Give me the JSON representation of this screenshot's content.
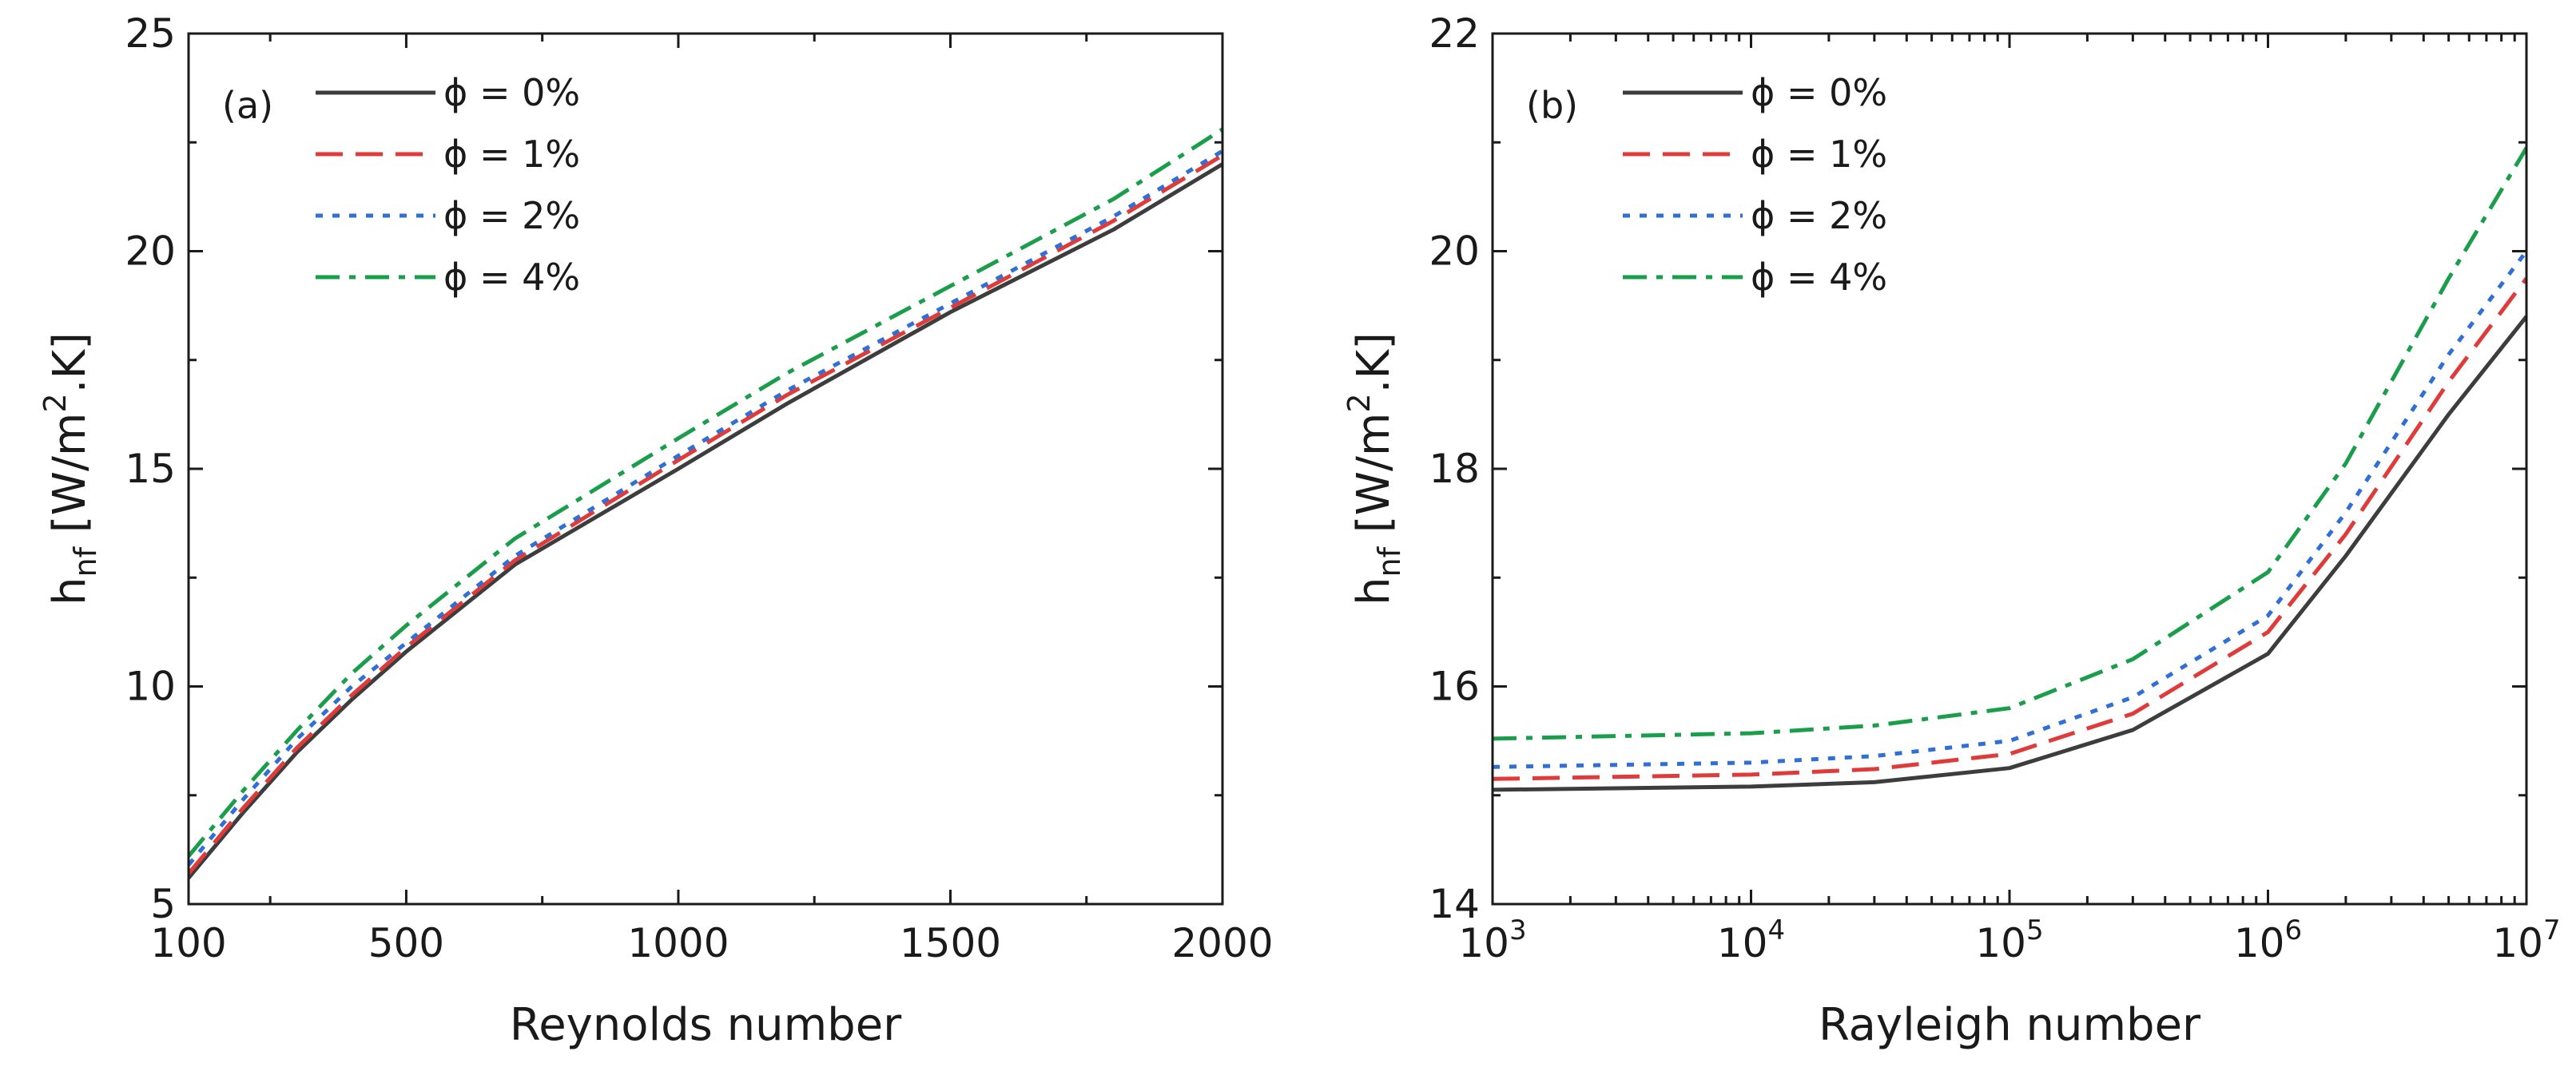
{
  "chart_data": [
    {
      "type": "line",
      "panel_label": "(a)",
      "title": "",
      "xlabel": "Reynolds number",
      "ylabel": {
        "main": "h",
        "sub": "nf",
        "unit_pre": " [W/m",
        "sup": "2",
        "unit_post": ".K]"
      },
      "xscale": "linear",
      "xlim": [
        100,
        2000
      ],
      "ylim": [
        5,
        25
      ],
      "xticks": [
        100,
        500,
        1000,
        1500,
        2000
      ],
      "xtick_labels": [
        "100",
        "500",
        "1000",
        "1500",
        "2000"
      ],
      "yticks": [
        5,
        10,
        15,
        20,
        25
      ],
      "ytick_labels": [
        "5",
        "10",
        "15",
        "20",
        "25"
      ],
      "x": [
        100,
        200,
        300,
        400,
        500,
        700,
        1000,
        1200,
        1500,
        1800,
        2000
      ],
      "series": [
        {
          "name": "ϕ = 0%",
          "color": "#3d3d3d",
          "dash": "solid",
          "values": [
            5.6,
            7.1,
            8.5,
            9.7,
            10.8,
            12.8,
            15.0,
            16.5,
            18.6,
            20.5,
            22.0
          ]
        },
        {
          "name": "ϕ = 1%",
          "color": "#e03b3b",
          "dash": "dash",
          "values": [
            5.7,
            7.2,
            8.6,
            9.8,
            10.9,
            12.9,
            15.2,
            16.7,
            18.7,
            20.7,
            22.2
          ]
        },
        {
          "name": "ϕ = 2%",
          "color": "#2f6fd6",
          "dash": "dot",
          "values": [
            5.9,
            7.4,
            8.8,
            10.0,
            11.0,
            13.0,
            15.3,
            16.8,
            18.8,
            20.8,
            22.3
          ]
        },
        {
          "name": "ϕ = 4%",
          "color": "#1a9e4b",
          "dash": "dashdot",
          "values": [
            6.1,
            7.6,
            9.0,
            10.3,
            11.4,
            13.4,
            15.7,
            17.2,
            19.2,
            21.2,
            22.8
          ]
        }
      ],
      "legend": "top-left"
    },
    {
      "type": "line",
      "panel_label": "(b)",
      "title": "",
      "xlabel": "Rayleigh number",
      "ylabel": {
        "main": "h",
        "sub": "nf",
        "unit_pre": " [W/m",
        "sup": "2",
        "unit_post": ".K]"
      },
      "xscale": "log",
      "xlim": [
        1000,
        10000000
      ],
      "ylim": [
        14,
        22
      ],
      "xticks": [
        1000,
        10000,
        100000,
        1000000,
        10000000
      ],
      "xtick_labels": [
        {
          "base": "10",
          "exp": "3"
        },
        {
          "base": "10",
          "exp": "4"
        },
        {
          "base": "10",
          "exp": "5"
        },
        {
          "base": "10",
          "exp": "6"
        },
        {
          "base": "10",
          "exp": "7"
        }
      ],
      "yticks": [
        14,
        16,
        18,
        20,
        22
      ],
      "ytick_labels": [
        "14",
        "16",
        "18",
        "20",
        "22"
      ],
      "x": [
        1000,
        10000,
        30000,
        100000,
        300000,
        1000000,
        2000000,
        5000000,
        10000000
      ],
      "series": [
        {
          "name": "ϕ = 0%",
          "color": "#3d3d3d",
          "dash": "solid",
          "values": [
            15.05,
            15.08,
            15.12,
            15.25,
            15.6,
            16.3,
            17.2,
            18.5,
            19.4
          ]
        },
        {
          "name": "ϕ = 1%",
          "color": "#e03b3b",
          "dash": "dash",
          "values": [
            15.15,
            15.19,
            15.24,
            15.38,
            15.75,
            16.5,
            17.4,
            18.8,
            19.75
          ]
        },
        {
          "name": "ϕ = 2%",
          "color": "#2f6fd6",
          "dash": "dot",
          "values": [
            15.26,
            15.3,
            15.36,
            15.5,
            15.9,
            16.65,
            17.6,
            19.05,
            20.0
          ]
        },
        {
          "name": "ϕ = 4%",
          "color": "#1a9e4b",
          "dash": "dashdot",
          "values": [
            15.52,
            15.57,
            15.64,
            15.8,
            16.25,
            17.05,
            18.05,
            19.75,
            20.95
          ]
        }
      ],
      "legend": "top-left"
    }
  ]
}
